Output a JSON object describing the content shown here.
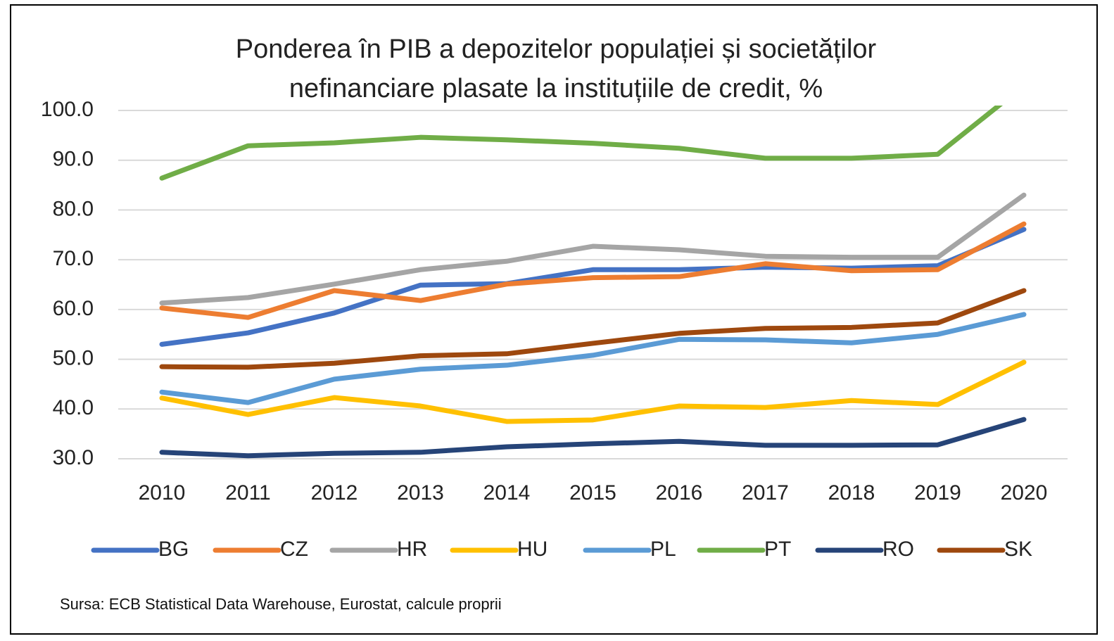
{
  "chart_data": {
    "type": "line",
    "title": "Ponderea în PIB a depozitelor populației și societăților\nnefinanciare plasate la instituțiile de credit, %",
    "source": "Sursa: ECB Statistical Data Warehouse, Eurostat, calcule proprii",
    "categories": [
      "2010",
      "2011",
      "2012",
      "2013",
      "2014",
      "2015",
      "2016",
      "2017",
      "2018",
      "2019",
      "2020"
    ],
    "ylim": [
      30,
      100
    ],
    "yticks": [
      {
        "value": 30,
        "label": "30.0"
      },
      {
        "value": 40,
        "label": "40.0"
      },
      {
        "value": 50,
        "label": "50.0"
      },
      {
        "value": 60,
        "label": "60.0"
      },
      {
        "value": 70,
        "label": "70.0"
      },
      {
        "value": 80,
        "label": "80.0"
      },
      {
        "value": 90,
        "label": "90.0"
      },
      {
        "value": 100,
        "label": "100.0"
      }
    ],
    "grid": true,
    "legend": "bottom",
    "series": [
      {
        "name": "BG",
        "color": "#4472c4",
        "values": [
          53.0,
          55.3,
          59.3,
          64.9,
          65.2,
          68.0,
          68.0,
          68.5,
          68.3,
          68.8,
          76.1
        ]
      },
      {
        "name": "CZ",
        "color": "#ed7d31",
        "values": [
          60.3,
          58.4,
          63.8,
          61.8,
          65.1,
          66.4,
          66.6,
          69.2,
          67.8,
          68.0,
          77.2
        ]
      },
      {
        "name": "HR",
        "color": "#a5a5a5",
        "values": [
          61.3,
          62.4,
          65.1,
          68.0,
          69.7,
          72.7,
          72.0,
          70.7,
          70.5,
          70.5,
          83.0
        ]
      },
      {
        "name": "HU",
        "color": "#ffc000",
        "values": [
          42.2,
          38.9,
          42.3,
          40.6,
          37.5,
          37.8,
          40.6,
          40.3,
          41.7,
          40.9,
          49.4
        ]
      },
      {
        "name": "PL",
        "color": "#5b9bd5",
        "values": [
          43.4,
          41.3,
          46.0,
          48.0,
          48.8,
          50.8,
          54.0,
          53.9,
          53.3,
          55.0,
          59.0
        ]
      },
      {
        "name": "PT",
        "color": "#70ad47",
        "values": [
          86.4,
          92.9,
          93.5,
          94.6,
          94.1,
          93.4,
          92.4,
          90.4,
          90.4,
          91.2,
          105
        ]
      },
      {
        "name": "RO",
        "color": "#264478",
        "values": [
          31.3,
          30.6,
          31.1,
          31.3,
          32.4,
          33.0,
          33.5,
          32.7,
          32.7,
          32.8,
          37.9
        ]
      },
      {
        "name": "SK",
        "color": "#9e480e",
        "values": [
          48.5,
          48.4,
          49.2,
          50.7,
          51.1,
          53.2,
          55.2,
          56.2,
          56.4,
          57.3,
          63.8
        ]
      }
    ]
  }
}
